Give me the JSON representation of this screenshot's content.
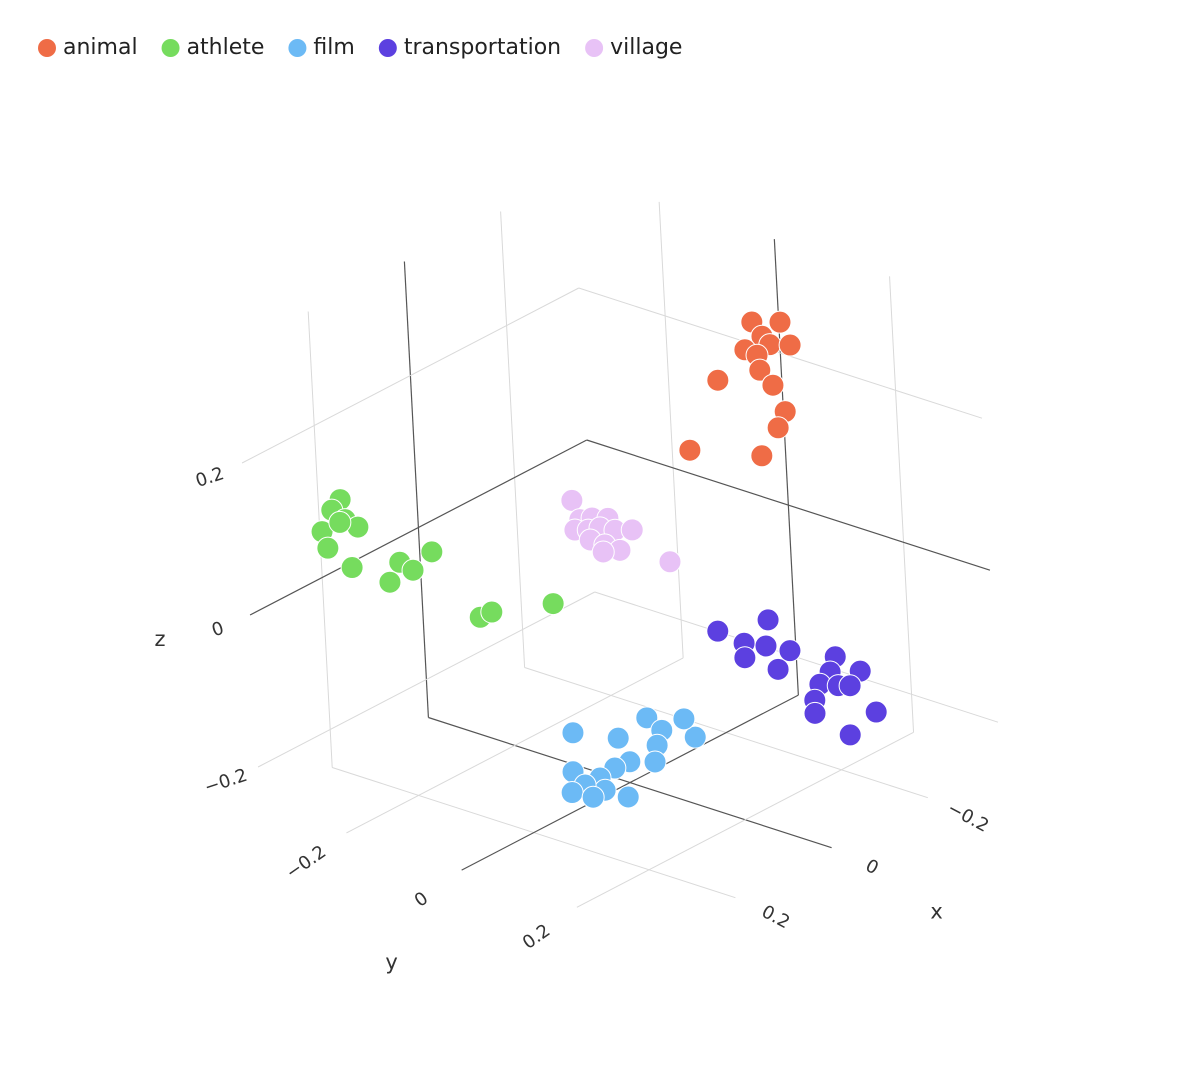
{
  "chart_data": {
    "type": "scatter3d",
    "x_label": "x",
    "y_label": "y",
    "z_label": "z",
    "xlim": [
      -0.35,
      0.35
    ],
    "ylim": [
      -0.35,
      0.35
    ],
    "zlim": [
      -0.25,
      0.35
    ],
    "xticks": [
      {
        "value": -0.2,
        "label": "−0.2"
      },
      0,
      0.2
    ],
    "yticks": [
      {
        "value": -0.2,
        "label": "−0.2"
      },
      0,
      0.2
    ],
    "zticks": [
      {
        "value": -0.2,
        "label": "−0.2"
      },
      0,
      0.2
    ],
    "grid": true,
    "legend": "top-left",
    "series": [
      {
        "name": "animal",
        "color": "#ef6c46",
        "x": [
          -0.181,
          -0.238,
          -0.2,
          -0.164,
          -0.215,
          -0.256,
          -0.188,
          -0.192,
          -0.106,
          -0.217,
          -0.239,
          -0.223,
          -0.042,
          -0.187
        ],
        "y": [
          0.1,
          0.1,
          0.1,
          0.1,
          0.1,
          0.1,
          0.1,
          0.1,
          0.1,
          0.1,
          0.1,
          0.1,
          0.1,
          0.1
        ],
        "z": [
          0.321,
          0.302,
          0.296,
          0.29,
          0.28,
          0.266,
          0.275,
          0.254,
          0.269,
          0.226,
          0.184,
          0.168,
          0.198,
          0.143
        ]
      },
      {
        "name": "athlete",
        "color": "#76dc5e",
        "x": [
          0.27,
          0.288,
          0.262,
          0.237,
          0.31,
          0.273,
          0.3,
          0.253,
          0.156,
          0.13,
          0.09,
          0.178,
          -0.001,
          -0.025,
          -0.15
        ],
        "y": [
          -0.25,
          -0.25,
          -0.25,
          -0.25,
          -0.25,
          -0.25,
          -0.25,
          -0.25,
          -0.25,
          -0.25,
          -0.25,
          -0.25,
          -0.25,
          -0.25,
          -0.25
        ],
        "z": [
          0.15,
          0.142,
          0.121,
          0.103,
          0.121,
          0.121,
          0.096,
          0.055,
          0.03,
          0.011,
          0.022,
          0.011,
          -0.094,
          -0.095,
          -0.125
        ]
      },
      {
        "name": "film",
        "color": "#6cbaf5",
        "x": [
          0.131,
          0.102,
          0.282,
          0.035,
          0.191,
          0.113,
          0.119,
          0.17,
          0.201,
          0.286,
          0.232,
          0.223,
          0.263,
          0.29,
          0.248,
          0.177,
          0.056
        ],
        "y": [
          0.15,
          0.15,
          0.15,
          0.15,
          0.15,
          0.15,
          0.15,
          0.15,
          0.15,
          0.15,
          0.15,
          0.15,
          0.15,
          0.15,
          0.15,
          0.15,
          0.15
        ],
        "z": [
          -0.085,
          -0.111,
          -0.055,
          -0.142,
          -0.092,
          -0.127,
          -0.147,
          -0.13,
          -0.128,
          -0.105,
          -0.131,
          -0.15,
          -0.13,
          -0.131,
          -0.151,
          -0.174,
          -0.111
        ]
      },
      {
        "name": "transportation",
        "color": "#5c40e0",
        "x": [
          0.047,
          0.15,
          0.098,
          0.054,
          0.006,
          0.098,
          0.032,
          -0.085,
          -0.134,
          -0.073,
          -0.051,
          -0.088,
          -0.112,
          -0.039,
          -0.162,
          -0.038,
          -0.107
        ],
        "y": [
          0.3,
          0.3,
          0.3,
          0.3,
          0.3,
          0.3,
          0.3,
          0.3,
          0.3,
          0.3,
          0.3,
          0.3,
          0.3,
          0.3,
          0.3,
          0.3,
          0.3
        ],
        "z": [
          0.053,
          0.072,
          0.039,
          0.021,
          -0.001,
          0.02,
          -0.017,
          -0.039,
          -0.074,
          -0.055,
          -0.064,
          -0.078,
          -0.086,
          -0.081,
          -0.137,
          -0.098,
          -0.149
        ]
      },
      {
        "name": "village",
        "color": "#e8c2f6",
        "x": [
          -0.027,
          -0.041,
          -0.066,
          -0.098,
          -0.03,
          -0.057,
          -0.081,
          -0.111,
          -0.146,
          -0.06,
          -0.089,
          -0.119,
          -0.085,
          -0.219
        ],
        "y": [
          -0.1,
          -0.1,
          -0.1,
          -0.1,
          -0.1,
          -0.1,
          -0.1,
          -0.1,
          -0.1,
          -0.1,
          -0.1,
          -0.1,
          -0.1,
          -0.1
        ],
        "z": [
          0.088,
          0.058,
          0.052,
          0.041,
          0.048,
          0.039,
          0.034,
          0.021,
          0.01,
          0.025,
          0.009,
          -0.008,
          0.001,
          -0.056
        ]
      }
    ]
  }
}
